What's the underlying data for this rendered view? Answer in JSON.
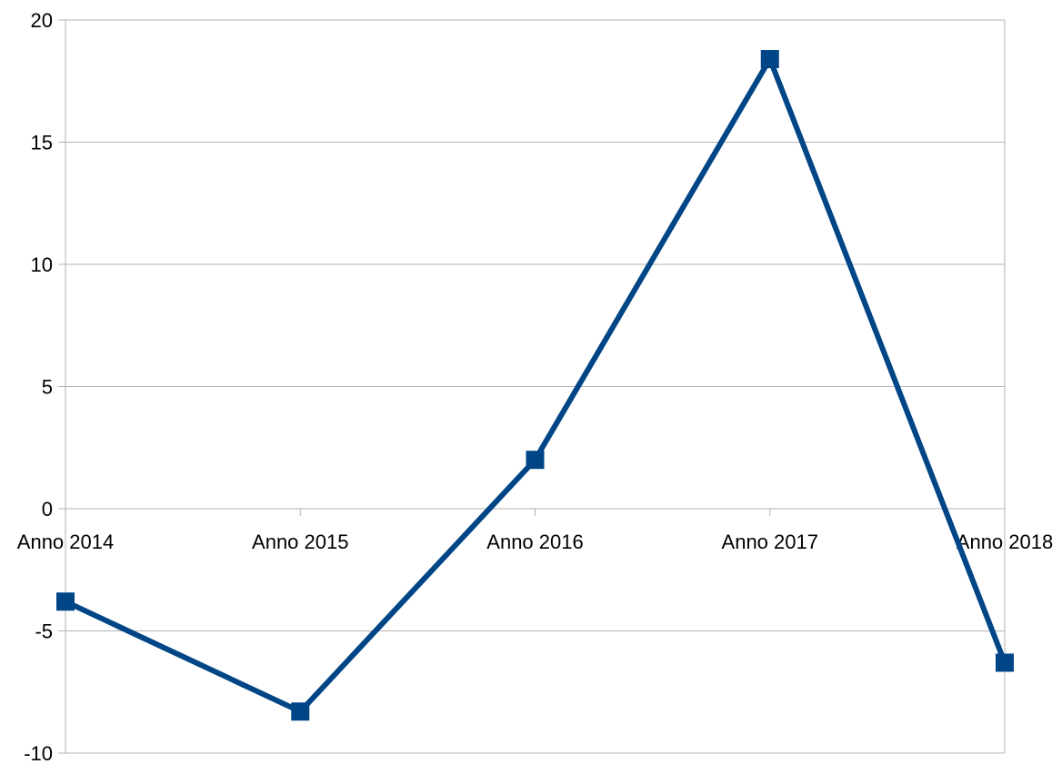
{
  "chart_data": {
    "type": "line",
    "categories": [
      "Anno 2014",
      "Anno 2015",
      "Anno 2016",
      "Anno 2017",
      "Anno 2018"
    ],
    "series": [
      {
        "values": [
          -3.8,
          -8.3,
          2.0,
          18.4,
          -6.3
        ],
        "color": "#004586",
        "marker": "square"
      }
    ],
    "ylim": [
      -10,
      20
    ],
    "yticks": [
      -10,
      -5,
      0,
      5,
      10,
      15,
      20
    ],
    "ytick_labels": [
      "-10",
      "-5",
      "0",
      "5",
      "10",
      "15",
      "20"
    ],
    "grid": true,
    "x_axis_at": 0
  }
}
